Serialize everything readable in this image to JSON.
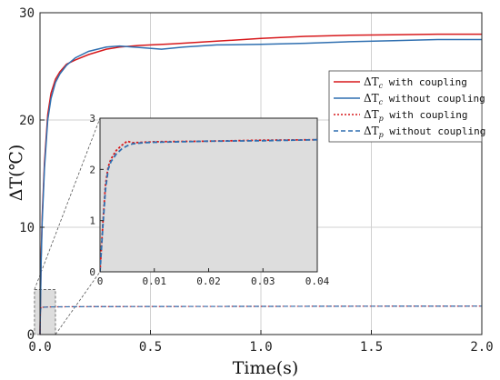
{
  "chart_data": {
    "type": "line",
    "xlabel": "Time(s)",
    "ylabel": "ΔT(℃)",
    "xlim": [
      0,
      2.0
    ],
    "ylim": [
      0,
      30
    ],
    "xticks": [
      "0.0",
      "0.5",
      "1.0",
      "1.5",
      "2.0"
    ],
    "yticks": [
      "0",
      "10",
      "20",
      "30"
    ],
    "grid": true,
    "legend_position": "right",
    "series": [
      {
        "name": "ΔTc with coupling",
        "symbol": "ΔT",
        "subscript": "c",
        "suffix": " with coupling",
        "color": "#d7191c",
        "dash": "solid",
        "x": [
          0,
          0.005,
          0.01,
          0.02,
          0.035,
          0.05,
          0.07,
          0.09,
          0.12,
          0.16,
          0.22,
          0.3,
          0.36,
          0.45,
          0.6,
          0.8,
          1.0,
          1.2,
          1.4,
          1.6,
          1.8,
          2.0
        ],
        "y": [
          0,
          7,
          11,
          16,
          20.5,
          22.5,
          23.8,
          24.5,
          25.2,
          25.6,
          26.1,
          26.6,
          26.8,
          26.95,
          27.1,
          27.35,
          27.6,
          27.8,
          27.9,
          27.95,
          28.0,
          28.0
        ]
      },
      {
        "name": "ΔTc without coupling",
        "symbol": "ΔT",
        "subscript": "c",
        "suffix": " without coupling",
        "color": "#2f6fb0",
        "dash": "solid",
        "x": [
          0,
          0.005,
          0.01,
          0.02,
          0.035,
          0.05,
          0.07,
          0.09,
          0.12,
          0.16,
          0.22,
          0.3,
          0.36,
          0.45,
          0.55,
          0.65,
          0.8,
          1.0,
          1.2,
          1.4,
          1.6,
          1.8,
          2.0
        ],
        "y": [
          0,
          6.5,
          10.5,
          15.5,
          20,
          22,
          23.5,
          24.3,
          25.1,
          25.8,
          26.4,
          26.8,
          26.9,
          26.75,
          26.6,
          26.8,
          27.0,
          27.05,
          27.15,
          27.3,
          27.4,
          27.5,
          27.5
        ]
      },
      {
        "name": "ΔTp with coupling",
        "symbol": "ΔT",
        "subscript": "p",
        "suffix": " with coupling",
        "color": "#d7191c",
        "dash": "dotted",
        "x": [
          0,
          0.0005,
          0.001,
          0.0015,
          0.002,
          0.003,
          0.004,
          0.005,
          0.006,
          0.008,
          0.01,
          0.02,
          0.03,
          0.04,
          0.2,
          0.6,
          1.0,
          1.5,
          2.0
        ],
        "y": [
          0,
          0.9,
          1.7,
          2.05,
          2.2,
          2.37,
          2.47,
          2.55,
          2.52,
          2.53,
          2.54,
          2.55,
          2.57,
          2.58,
          2.6,
          2.62,
          2.63,
          2.64,
          2.65
        ]
      },
      {
        "name": "ΔTp without coupling",
        "symbol": "ΔT",
        "subscript": "p",
        "suffix": " without coupling",
        "color": "#2f6fb0",
        "dash": "dashed",
        "x": [
          0,
          0.0005,
          0.001,
          0.0015,
          0.002,
          0.003,
          0.004,
          0.005,
          0.006,
          0.008,
          0.01,
          0.02,
          0.03,
          0.04,
          0.2,
          0.6,
          1.0,
          1.5,
          2.0
        ],
        "y": [
          0,
          0.85,
          1.6,
          2.0,
          2.15,
          2.3,
          2.4,
          2.46,
          2.5,
          2.52,
          2.53,
          2.55,
          2.56,
          2.58,
          2.6,
          2.62,
          2.63,
          2.64,
          2.65
        ]
      }
    ],
    "inset": {
      "xlim": [
        0,
        0.04
      ],
      "ylim": [
        0,
        3
      ],
      "xticks": [
        "0",
        "0.01",
        "0.02",
        "0.03",
        "0.04"
      ],
      "yticks": [
        "0",
        "1",
        "2",
        "3"
      ],
      "shows_series": [
        "ΔTp with coupling",
        "ΔTp without coupling"
      ],
      "zoom_box": {
        "x": [
          -0.025,
          0.07
        ],
        "y": [
          0,
          4.2
        ]
      },
      "background_color": "#dddddd"
    }
  }
}
